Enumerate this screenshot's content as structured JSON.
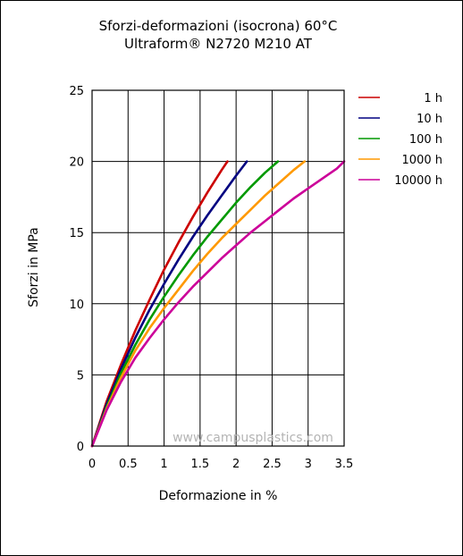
{
  "chart_data": {
    "type": "line",
    "title": "Sforzi-deformazioni (isocrona) 60°C",
    "subtitle": "Ultraform® N2720 M210 AT",
    "xlabel": "Deformazione in %",
    "ylabel": "Sforzi in MPa",
    "xlim": [
      0,
      3.5
    ],
    "ylim": [
      0,
      25
    ],
    "xticks": [
      "0",
      "0.5",
      "1",
      "1.5",
      "2",
      "2.5",
      "3",
      "3.5"
    ],
    "yticks": [
      "0",
      "5",
      "10",
      "15",
      "20",
      "25"
    ],
    "grid": true,
    "legend_position": "right",
    "watermark": "www.campusplastics.com",
    "series": [
      {
        "name": "1 h",
        "color": "#cc0000",
        "x": [
          0,
          0.2,
          0.4,
          0.6,
          0.8,
          1.0,
          1.2,
          1.4,
          1.6,
          1.8,
          1.88
        ],
        "y": [
          0,
          3.1,
          5.7,
          8.1,
          10.3,
          12.4,
          14.3,
          16.1,
          17.8,
          19.4,
          20
        ]
      },
      {
        "name": "10 h",
        "color": "#000080",
        "x": [
          0,
          0.2,
          0.4,
          0.6,
          0.8,
          1.0,
          1.2,
          1.4,
          1.6,
          1.8,
          2.0,
          2.15
        ],
        "y": [
          0,
          2.9,
          5.4,
          7.6,
          9.6,
          11.4,
          13.1,
          14.7,
          16.2,
          17.6,
          19.0,
          20
        ]
      },
      {
        "name": "100 h",
        "color": "#009900",
        "x": [
          0,
          0.2,
          0.4,
          0.6,
          0.8,
          1.0,
          1.2,
          1.4,
          1.6,
          1.8,
          2.0,
          2.2,
          2.4,
          2.58
        ],
        "y": [
          0,
          2.7,
          5.1,
          7.1,
          8.9,
          10.5,
          12.0,
          13.4,
          14.7,
          15.9,
          17.1,
          18.2,
          19.2,
          20
        ]
      },
      {
        "name": "1000 h",
        "color": "#ff9900",
        "x": [
          0,
          0.2,
          0.4,
          0.6,
          0.8,
          1.0,
          1.2,
          1.4,
          1.6,
          1.8,
          2.0,
          2.2,
          2.4,
          2.6,
          2.8,
          2.95
        ],
        "y": [
          0,
          2.6,
          4.8,
          6.7,
          8.3,
          9.7,
          11.0,
          12.3,
          13.5,
          14.6,
          15.6,
          16.6,
          17.6,
          18.5,
          19.4,
          20
        ]
      },
      {
        "name": "10000 h",
        "color": "#cc0099",
        "x": [
          0,
          0.2,
          0.4,
          0.6,
          0.8,
          1.0,
          1.2,
          1.4,
          1.6,
          1.8,
          2.0,
          2.2,
          2.4,
          2.6,
          2.8,
          3.0,
          3.2,
          3.4,
          3.5
        ],
        "y": [
          0,
          2.5,
          4.5,
          6.2,
          7.6,
          8.9,
          10.1,
          11.2,
          12.2,
          13.2,
          14.1,
          15.0,
          15.8,
          16.6,
          17.4,
          18.1,
          18.8,
          19.5,
          20
        ]
      }
    ]
  }
}
